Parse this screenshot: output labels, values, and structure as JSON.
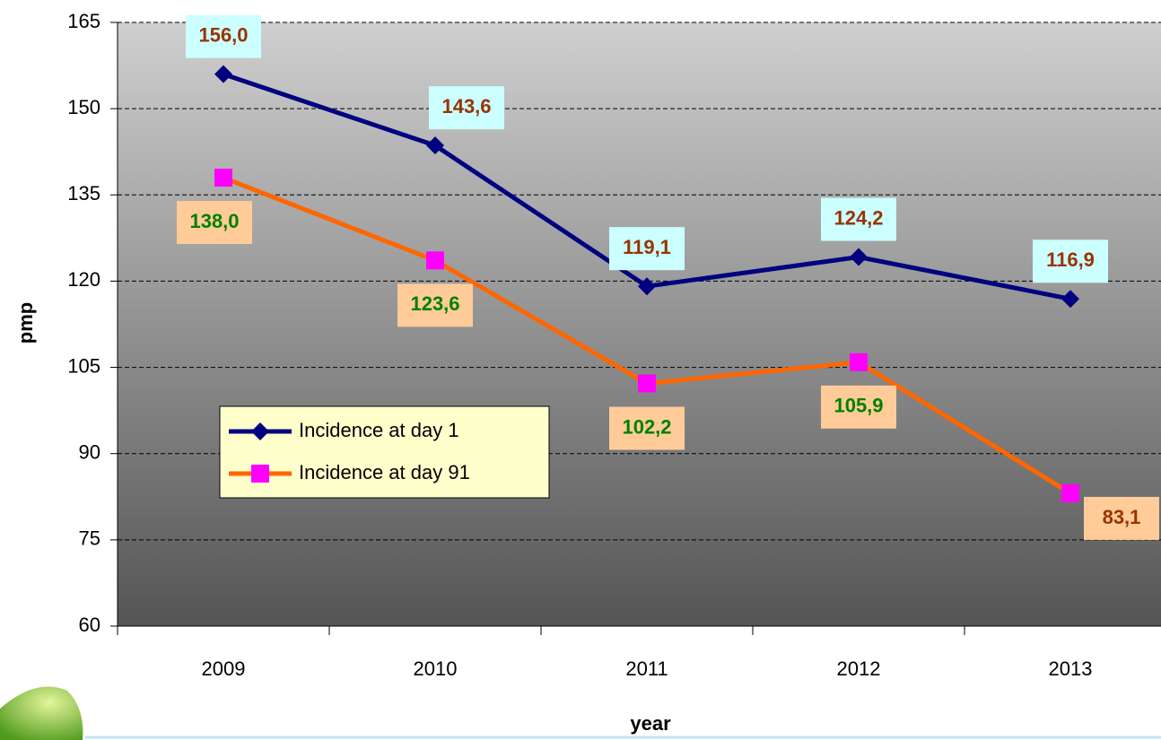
{
  "chart_data": {
    "type": "line",
    "categories": [
      "2009",
      "2010",
      "2011",
      "2012",
      "2013"
    ],
    "x_label": "year",
    "y_label": "pmp",
    "ylim": [
      60,
      165
    ],
    "yticks": [
      60,
      75,
      90,
      105,
      120,
      135,
      150,
      165
    ],
    "grid": true,
    "legend_position": "left",
    "series": [
      {
        "name": "Incidence at day 1",
        "color": "#000080",
        "marker": "diamond",
        "marker_color": "#000080",
        "values": [
          156.0,
          143.6,
          119.1,
          124.2,
          116.9
        ],
        "value_labels": [
          "156,0",
          "143,6",
          "119,1",
          "124,2",
          "116,9"
        ],
        "label_colors": [
          "#993300",
          "#993300",
          "#993300",
          "#993300",
          "#993300"
        ],
        "label_background": "#ccffff"
      },
      {
        "name": "Incidence at day 91",
        "color": "#ff6600",
        "marker": "square",
        "marker_color": "#ff00ff",
        "values": [
          138.0,
          123.6,
          102.2,
          105.9,
          83.1
        ],
        "value_labels": [
          "138,0",
          "123,6",
          "102,2",
          "105,9",
          "83,1"
        ],
        "label_colors": [
          "#008000",
          "#008000",
          "#008000",
          "#008000",
          "#993300"
        ],
        "label_background": "#ffcc99"
      }
    ]
  }
}
